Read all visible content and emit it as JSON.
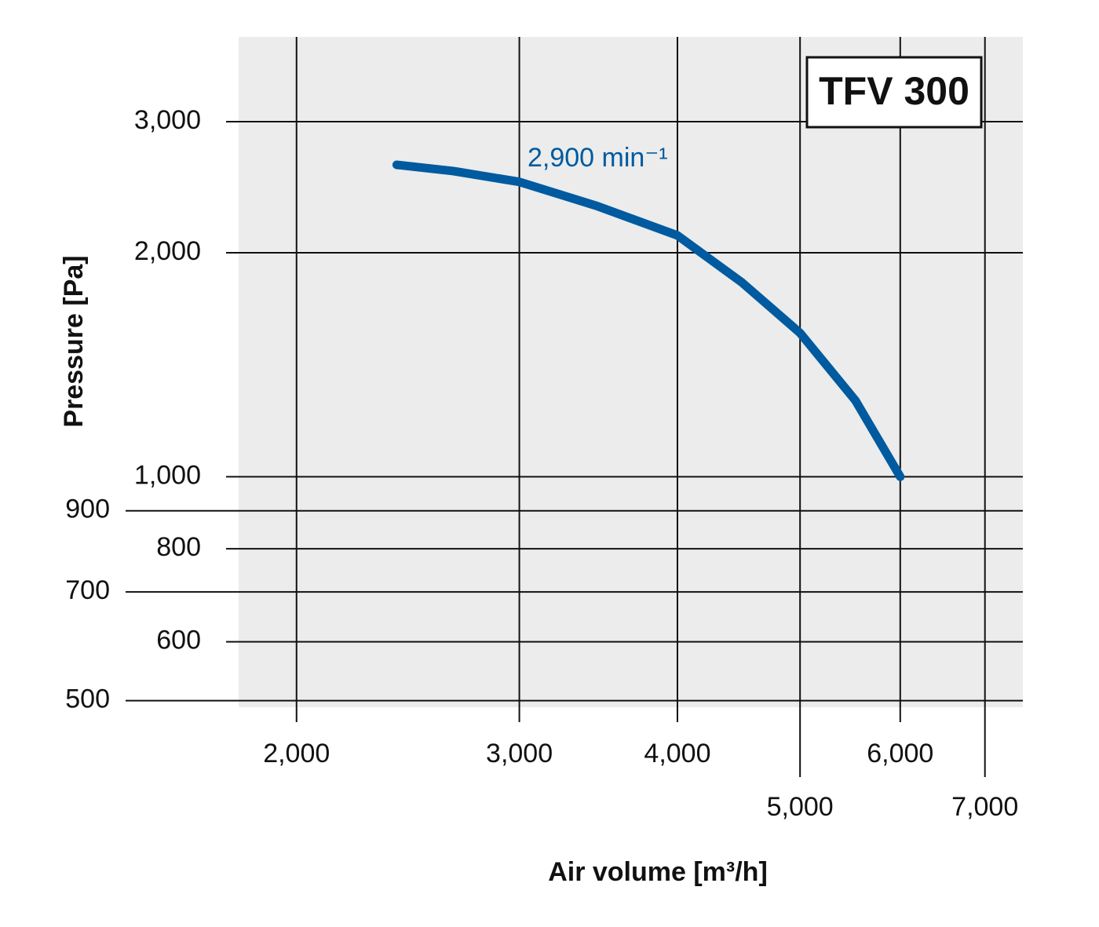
{
  "chart_data": {
    "type": "line",
    "title": "TFV 300",
    "x_label": "Air volume [m³/h]",
    "y_label": "Pressure [Pa]",
    "log_x": true,
    "log_y": true,
    "grid": true,
    "xlim": [
      1800,
      7500
    ],
    "ylim": [
      490,
      3900
    ],
    "xticks": [
      {
        "value": 2000,
        "label": "2,000"
      },
      {
        "value": 3000,
        "label": "3,000"
      },
      {
        "value": 4000,
        "label": "4,000"
      },
      {
        "value": 5000,
        "label": "5,000"
      },
      {
        "value": 6000,
        "label": "6,000"
      },
      {
        "value": 7000,
        "label": "7,000"
      }
    ],
    "yticks": [
      500,
      600,
      700,
      800,
      900,
      {
        "value": 1000,
        "label": "1,000"
      },
      {
        "value": 2000,
        "label": "2,000"
      },
      {
        "value": 3000,
        "label": "3,000"
      }
    ],
    "x": [
      2400,
      2660,
      3000,
      3450,
      4000,
      4500,
      5000,
      5530,
      6000
    ],
    "series": [
      {
        "name": "2,900 min⁻¹",
        "color": "#005aa0",
        "values": [
          2625,
          2575,
          2490,
          2313,
          2110,
          1823,
          1560,
          1266,
          1000
        ]
      }
    ]
  }
}
